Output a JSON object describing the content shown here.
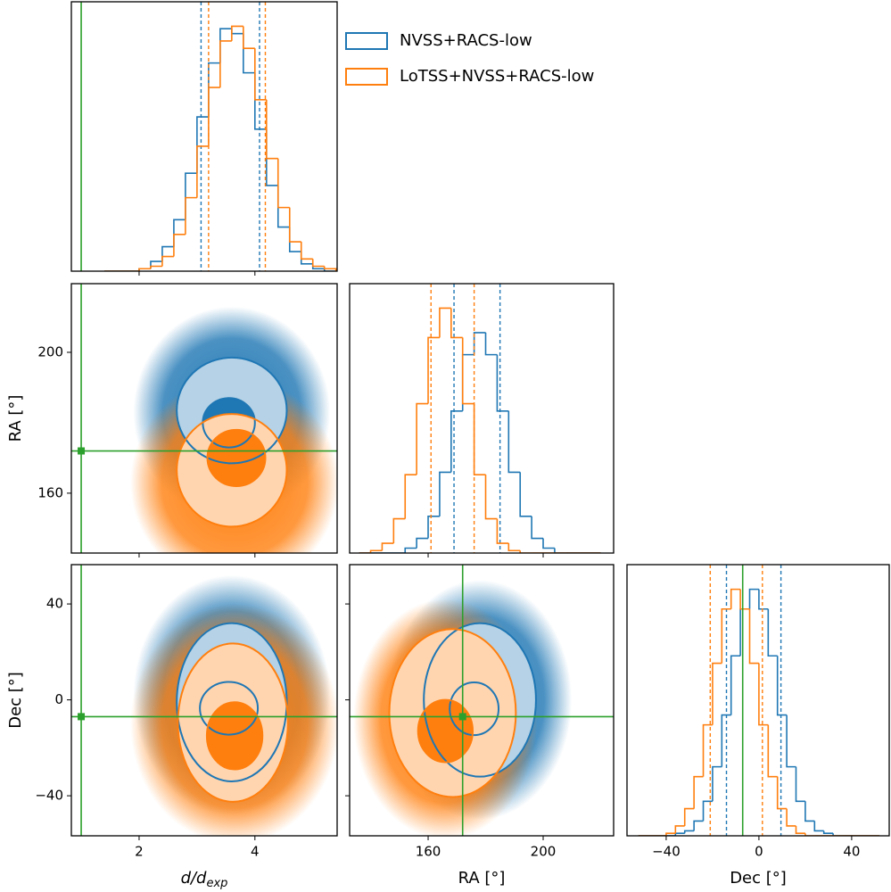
{
  "chart_data": [
    {
      "type": "histogram",
      "xlim": [
        0.83,
        5.42
      ],
      "ylim": [
        0,
        1.1
      ],
      "xticks": [
        2,
        4
      ],
      "xticklabels": false,
      "truth": 1,
      "legend": "right",
      "bins": [
        1.4,
        1.6,
        1.8,
        2.0,
        2.2,
        2.4,
        2.6,
        2.8,
        3.0,
        3.2,
        3.4,
        3.6,
        3.8,
        4.0,
        4.2,
        4.4,
        4.6,
        4.8,
        5.0,
        5.2,
        5.4
      ],
      "series": [
        {
          "name": "NVSS+RACS-low",
          "color": "#1f77b4",
          "quantiles": [
            3.07,
            4.08
          ],
          "values": [
            0.0,
            0.0,
            0.0,
            0.01,
            0.04,
            0.1,
            0.21,
            0.4,
            0.63,
            0.85,
            0.99,
            0.97,
            0.81,
            0.58,
            0.35,
            0.18,
            0.08,
            0.03,
            0.01,
            0.0
          ]
        },
        {
          "name": "LoTSS+NVSS+RACS-low",
          "color": "#ff7f0e",
          "quantiles": [
            3.2,
            4.18
          ],
          "values": [
            0.0,
            0.0,
            0.0,
            0.01,
            0.02,
            0.06,
            0.15,
            0.3,
            0.51,
            0.75,
            0.94,
            1.0,
            0.91,
            0.7,
            0.46,
            0.26,
            0.12,
            0.05,
            0.02,
            0.01
          ]
        }
      ]
    },
    {
      "type": "contour",
      "xlim": [
        0.83,
        5.42
      ],
      "ylim": [
        143,
        219.5
      ],
      "xticks": [
        2,
        4
      ],
      "yticks": [
        160,
        200
      ],
      "xticklabels": false,
      "yticklabels": true,
      "ylabel": "RA [°]",
      "truth": [
        1,
        172
      ],
      "series": [
        {
          "color": "#1f77b4",
          "cloud": [
            3.6,
            183,
            1.7,
            30
          ],
          "contours": [
            [
              3.6,
              183.5,
              0.95,
              15
            ],
            [
              3.55,
              180,
              0.45,
              7
            ]
          ]
        },
        {
          "color": "#ff7f0e",
          "cloud": [
            3.65,
            163,
            1.8,
            30
          ],
          "contours": [
            [
              3.6,
              166.5,
              0.95,
              16
            ],
            [
              3.68,
              170,
              0.5,
              8
            ]
          ]
        }
      ]
    },
    {
      "type": "histogram",
      "xlim": [
        132.7,
        224.5
      ],
      "ylim": [
        0,
        1.1
      ],
      "xticks": [
        160,
        200
      ],
      "xticklabels": false,
      "bins": [
        136,
        140,
        144,
        148,
        152,
        156,
        160,
        164,
        168,
        172,
        176,
        180,
        184,
        188,
        192,
        196,
        200,
        204,
        208,
        212,
        216,
        220
      ],
      "series": [
        {
          "color": "#1f77b4",
          "quantiles": [
            169,
            185
          ],
          "values": [
            0,
            0,
            0,
            0,
            0.02,
            0.06,
            0.15,
            0.33,
            0.58,
            0.81,
            0.9,
            0.81,
            0.58,
            0.33,
            0.15,
            0.06,
            0.02,
            0,
            0,
            0,
            0
          ]
        },
        {
          "color": "#ff7f0e",
          "quantiles": [
            161,
            176
          ],
          "values": [
            0,
            0.01,
            0.04,
            0.14,
            0.32,
            0.61,
            0.88,
            1.0,
            0.88,
            0.61,
            0.32,
            0.14,
            0.04,
            0.01,
            0,
            0,
            0,
            0,
            0,
            0,
            0
          ]
        }
      ]
    },
    {
      "type": "contour",
      "xlim": [
        0.83,
        5.42
      ],
      "ylim": [
        -56.7,
        56.4
      ],
      "xticks": [
        2,
        4
      ],
      "yticks": [
        {
          "value": -40,
          "label": "−40"
        },
        0,
        40
      ],
      "xticklabels": true,
      "yticklabels": true,
      "xlabel": "d/d",
      "xlabel_sub": "exp",
      "ylabel": "Dec [°]",
      "truth": [
        1,
        -7
      ],
      "series": [
        {
          "color": "#1f77b4",
          "cloud": [
            3.6,
            2,
            1.7,
            50
          ],
          "contours": [
            [
              3.6,
              -1,
              0.95,
              33
            ],
            [
              3.55,
              -3.5,
              0.5,
              11
            ]
          ]
        },
        {
          "color": "#ff7f0e",
          "cloud": [
            3.65,
            -10,
            1.8,
            50
          ],
          "contours": [
            [
              3.62,
              -9.5,
              0.95,
              33
            ],
            [
              3.65,
              -15,
              0.48,
              14
            ]
          ]
        }
      ]
    },
    {
      "type": "contour",
      "xlim": [
        132.7,
        224.5
      ],
      "ylim": [
        -56.7,
        56.4
      ],
      "xticks": [
        160,
        200
      ],
      "yticks": [
        {
          "value": -40,
          "label": "−40"
        },
        0,
        40
      ],
      "xticklabels": true,
      "yticklabels": false,
      "xlabel": "RA [°]",
      "truth": [
        172,
        -7
      ],
      "series": [
        {
          "color": "#1f77b4",
          "cloud": [
            178,
            0,
            32,
            50
          ],
          "contours": [
            [
              178,
              0,
              19.5,
              32
            ],
            [
              176,
              -3.7,
              8.5,
              11
            ]
          ]
        },
        {
          "color": "#ff7f0e",
          "cloud": [
            166,
            -8,
            32,
            50
          ],
          "contours": [
            [
              168.5,
              -5.5,
              22,
              35
            ],
            [
              166,
              -13,
              9.5,
              13
            ]
          ]
        }
      ]
    },
    {
      "type": "histogram",
      "xlim": [
        -56.9,
        56.2
      ],
      "ylim": [
        0,
        1.1
      ],
      "xticks": [
        {
          "value": -40,
          "label": "−40"
        },
        0,
        40
      ],
      "xticklabels": true,
      "xlabel": "Dec [°]",
      "truth": -7,
      "bins": [
        -52,
        -48,
        -44,
        -40,
        -36,
        -32,
        -28,
        -24,
        -20,
        -16,
        -12,
        -8,
        -4,
        0,
        4,
        8,
        12,
        16,
        20,
        24,
        28,
        32,
        36,
        40,
        44,
        48,
        52
      ],
      "series": [
        {
          "color": "#1f77b4",
          "quantiles": [
            -14,
            9.5
          ],
          "values": [
            0,
            0,
            0,
            0,
            0.01,
            0.02,
            0.06,
            0.14,
            0.28,
            0.49,
            0.73,
            0.92,
            1.0,
            0.92,
            0.73,
            0.49,
            0.28,
            0.14,
            0.06,
            0.02,
            0.01,
            0,
            0,
            0,
            0,
            0
          ]
        },
        {
          "color": "#ff7f0e",
          "quantiles": [
            -21,
            1.5
          ],
          "values": [
            0,
            0,
            0,
            0.01,
            0.04,
            0.11,
            0.24,
            0.45,
            0.7,
            0.92,
            1.0,
            0.92,
            0.7,
            0.45,
            0.24,
            0.11,
            0.04,
            0.01,
            0,
            0,
            0,
            0,
            0,
            0,
            0,
            0
          ]
        }
      ]
    }
  ]
}
